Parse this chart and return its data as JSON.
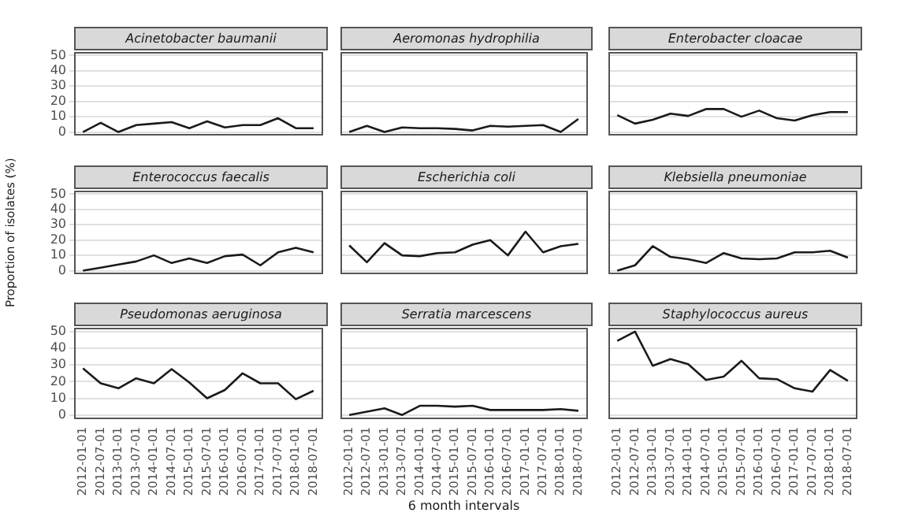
{
  "chart_data": [
    {
      "type": "line",
      "title": "Acinetobacter baumanii",
      "categories": [
        "2012-01-01",
        "2012-07-01",
        "2013-01-01",
        "2013-07-01",
        "2014-01-01",
        "2014-07-01",
        "2015-01-01",
        "2015-07-01",
        "2016-01-01",
        "2016-07-01",
        "2017-01-01",
        "2017-07-01",
        "2018-01-01",
        "2018-07-01"
      ],
      "values": [
        0,
        6,
        0,
        4.5,
        5.5,
        6.5,
        2.5,
        7,
        3,
        4.5,
        4.5,
        9,
        2.5,
        2.5
      ],
      "color": "#1a1a1a",
      "ylim": [
        -2.5,
        52.5
      ],
      "yticks": [
        0,
        10,
        20,
        30,
        40,
        50
      ],
      "grid": "y",
      "tick_labels": "y"
    },
    {
      "type": "line",
      "title": "Aeromonas hydrophilia",
      "categories": [
        "2012-01-01",
        "2012-07-01",
        "2013-01-01",
        "2013-07-01",
        "2014-01-01",
        "2014-07-01",
        "2015-01-01",
        "2015-07-01",
        "2016-01-01",
        "2016-07-01",
        "2017-01-01",
        "2017-07-01",
        "2018-01-01",
        "2018-07-01"
      ],
      "values": [
        0,
        4,
        0,
        3,
        2.5,
        2.5,
        2,
        1,
        4,
        3.5,
        4,
        4.5,
        0,
        8.5
      ],
      "color": "#1a1a1a",
      "ylim": [
        -2.5,
        52.5
      ],
      "yticks": [
        0,
        10,
        20,
        30,
        40,
        50
      ],
      "grid": "y",
      "tick_labels": false
    },
    {
      "type": "line",
      "title": "Enterobacter cloacae",
      "categories": [
        "2012-01-01",
        "2012-07-01",
        "2013-01-01",
        "2013-07-01",
        "2014-01-01",
        "2014-07-01",
        "2015-01-01",
        "2015-07-01",
        "2016-01-01",
        "2016-07-01",
        "2017-01-01",
        "2017-07-01",
        "2018-01-01",
        "2018-07-01"
      ],
      "values": [
        11,
        5.5,
        8,
        12,
        10.5,
        15,
        15,
        10,
        14,
        9,
        7.5,
        11,
        13,
        13
      ],
      "color": "#1a1a1a",
      "ylim": [
        -2.5,
        52.5
      ],
      "yticks": [
        0,
        10,
        20,
        30,
        40,
        50
      ],
      "grid": "y",
      "tick_labels": false
    },
    {
      "type": "line",
      "title": "Enterococcus faecalis",
      "ylabel": "Proportion of isolates (%)",
      "categories": [
        "2012-01-01",
        "2012-07-01",
        "2013-01-01",
        "2013-07-01",
        "2014-01-01",
        "2014-07-01",
        "2015-01-01",
        "2015-07-01",
        "2016-01-01",
        "2016-07-01",
        "2017-01-01",
        "2017-07-01",
        "2018-01-01",
        "2018-07-01"
      ],
      "values": [
        0,
        2,
        4,
        6,
        10,
        5,
        8,
        5,
        9.5,
        10.5,
        3.5,
        12,
        15,
        12
      ],
      "color": "#1a1a1a",
      "ylim": [
        -2.5,
        52.5
      ],
      "yticks": [
        0,
        10,
        20,
        30,
        40,
        50
      ],
      "grid": "y",
      "tick_labels": "y"
    },
    {
      "type": "line",
      "title": "Escherichia coli",
      "categories": [
        "2012-01-01",
        "2012-07-01",
        "2013-01-01",
        "2013-07-01",
        "2014-01-01",
        "2014-07-01",
        "2015-01-01",
        "2015-07-01",
        "2016-01-01",
        "2016-07-01",
        "2017-01-01",
        "2017-07-01",
        "2018-01-01",
        "2018-07-01"
      ],
      "values": [
        16.5,
        5.5,
        18,
        10,
        9.5,
        11.5,
        12,
        17,
        20,
        10,
        25.5,
        12,
        16,
        17.5
      ],
      "color": "#1a1a1a",
      "ylim": [
        -2.5,
        52.5
      ],
      "yticks": [
        0,
        10,
        20,
        30,
        40,
        50
      ],
      "grid": "y",
      "tick_labels": false
    },
    {
      "type": "line",
      "title": "Klebsiella pneumoniae",
      "categories": [
        "2012-01-01",
        "2012-07-01",
        "2013-01-01",
        "2013-07-01",
        "2014-01-01",
        "2014-07-01",
        "2015-01-01",
        "2015-07-01",
        "2016-01-01",
        "2016-07-01",
        "2017-01-01",
        "2017-07-01",
        "2018-01-01",
        "2018-07-01"
      ],
      "values": [
        0,
        3.5,
        16,
        9,
        7.5,
        5,
        11.5,
        8,
        7.5,
        8,
        12,
        12,
        13,
        8.5
      ],
      "color": "#1a1a1a",
      "ylim": [
        -2.5,
        52.5
      ],
      "yticks": [
        0,
        10,
        20,
        30,
        40,
        50
      ],
      "grid": "y",
      "tick_labels": false
    },
    {
      "type": "line",
      "title": "Pseudomonas aeruginosa",
      "categories": [
        "2012-01-01",
        "2012-07-01",
        "2013-01-01",
        "2013-07-01",
        "2014-01-01",
        "2014-07-01",
        "2015-01-01",
        "2015-07-01",
        "2016-01-01",
        "2016-07-01",
        "2017-01-01",
        "2017-07-01",
        "2018-01-01",
        "2018-07-01"
      ],
      "values": [
        28,
        19,
        16,
        22,
        19,
        27.5,
        19.5,
        10,
        15,
        25,
        19,
        19,
        9.5,
        14.5
      ],
      "color": "#1a1a1a",
      "ylim": [
        -2.5,
        52.5
      ],
      "yticks": [
        0,
        10,
        20,
        30,
        40,
        50
      ],
      "grid": "y"
    },
    {
      "type": "line",
      "title": "Serratia marcescens",
      "xlabel": "6 month intervals",
      "categories": [
        "2012-01-01",
        "2012-07-01",
        "2013-01-01",
        "2013-07-01",
        "2014-01-01",
        "2014-07-01",
        "2015-01-01",
        "2015-07-01",
        "2016-01-01",
        "2016-07-01",
        "2017-01-01",
        "2017-07-01",
        "2018-01-01",
        "2018-07-01"
      ],
      "values": [
        0,
        2,
        4,
        0,
        5.5,
        5.5,
        5,
        5.5,
        3,
        3,
        3,
        3,
        3.5,
        2.5
      ],
      "color": "#1a1a1a",
      "ylim": [
        -2.5,
        52.5
      ],
      "yticks": [
        0,
        10,
        20,
        30,
        40,
        50
      ],
      "grid": "y",
      "tick_labels": "x"
    },
    {
      "type": "line",
      "title": "Staphylococcus aureus",
      "categories": [
        "2012-01-01",
        "2012-07-01",
        "2013-01-01",
        "2013-07-01",
        "2014-01-01",
        "2014-07-01",
        "2015-01-01",
        "2015-07-01",
        "2016-01-01",
        "2016-07-01",
        "2017-01-01",
        "2017-07-01",
        "2018-01-01",
        "2018-07-01"
      ],
      "values": [
        44.5,
        50,
        29.5,
        33.5,
        30.5,
        21,
        23,
        32.5,
        22,
        21.5,
        16,
        14,
        27,
        20.5
      ],
      "color": "#1a1a1a",
      "ylim": [
        -2.5,
        52.5
      ],
      "yticks": [
        0,
        10,
        20,
        30,
        40,
        50
      ],
      "grid": "y",
      "tick_labels": "x"
    }
  ]
}
